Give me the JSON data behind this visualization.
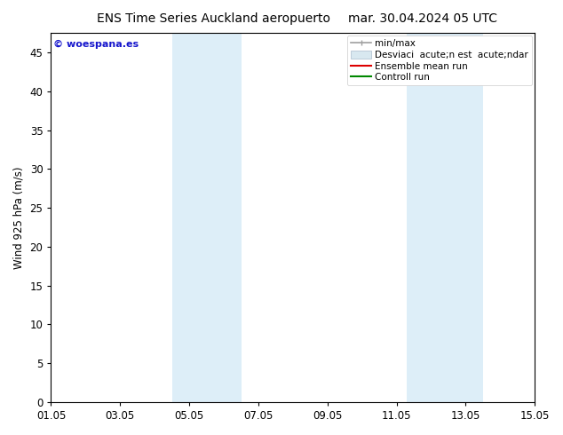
{
  "title_left": "ENS Time Series Auckland aeropuerto",
  "title_right": "mar. 30.04.2024 05 UTC",
  "ylabel": "Wind 925 hPa (m/s)",
  "ylim": [
    0,
    47.5
  ],
  "yticks": [
    0,
    5,
    10,
    15,
    20,
    25,
    30,
    35,
    40,
    45
  ],
  "xlim_num": [
    0,
    14
  ],
  "xtick_positions": [
    0,
    2,
    4,
    6,
    8,
    10,
    12,
    14
  ],
  "xtick_labels": [
    "01.05",
    "03.05",
    "05.05",
    "07.05",
    "09.05",
    "11.05",
    "13.05",
    "15.05"
  ],
  "shaded_bands": [
    {
      "x_start": 3.5,
      "x_end": 4.3,
      "color": "#ddeef8"
    },
    {
      "x_start": 4.3,
      "x_end": 5.5,
      "color": "#ddeef8"
    },
    {
      "x_start": 10.3,
      "x_end": 11.1,
      "color": "#ddeef8"
    },
    {
      "x_start": 11.1,
      "x_end": 12.5,
      "color": "#ddeef8"
    }
  ],
  "watermark": "© woespana.es",
  "watermark_color": "#1515cc",
  "bg_color": "#ffffff",
  "plot_bg_color": "#ffffff",
  "legend_minmax_color": "#a0a0a0",
  "legend_std_color": "#d8e8f0",
  "legend_ens_color": "#dd0000",
  "legend_ctrl_color": "#008800",
  "grid_color": "#e0e0e0",
  "title_fontsize": 10,
  "axis_fontsize": 8.5,
  "tick_fontsize": 8.5,
  "legend_fontsize": 7.5
}
